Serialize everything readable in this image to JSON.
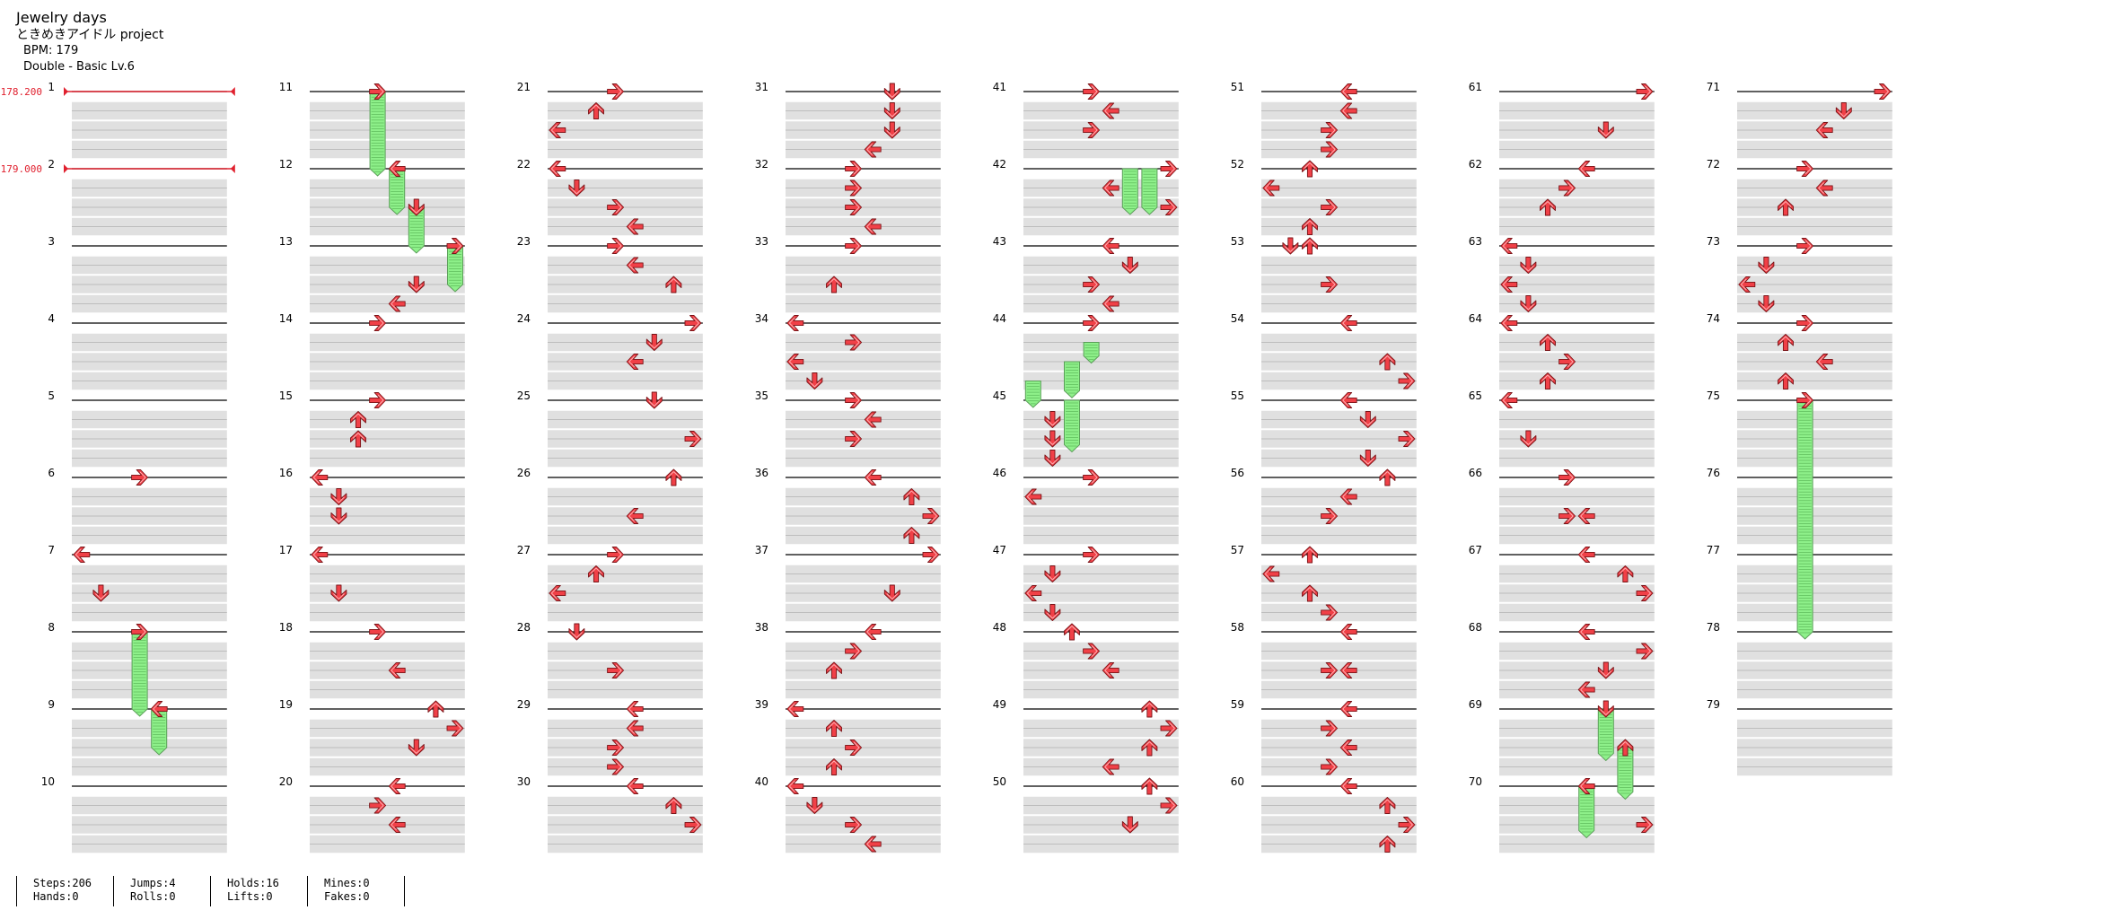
{
  "header": {
    "title": "Jewelry days",
    "artist": "ときめきアイドル project",
    "bpm": "BPM: 179",
    "difficulty": "Double - Basic  Lv.6"
  },
  "bpm_changes": [
    {
      "measure": 1,
      "label": "178.200"
    },
    {
      "measure": 2,
      "label": "179.000"
    }
  ],
  "total_measures": 79,
  "measures_per_column": 10,
  "lanes": 8,
  "rows_per_measure": 4,
  "colors": {
    "arrow": "#f04047",
    "hold": "#8ef08a",
    "hold_border": "#5a9e58",
    "stripe": "#e0e0e0",
    "bpm_line": "#e0202e"
  },
  "notes": [
    {
      "m": 6,
      "r": 0,
      "lane": 3,
      "dir": "right"
    },
    {
      "m": 7,
      "r": 0,
      "lane": 0,
      "dir": "left"
    },
    {
      "m": 7,
      "r": 2,
      "lane": 1,
      "dir": "down"
    },
    {
      "m": 8,
      "r": 0,
      "lane": 3,
      "dir": "right"
    },
    {
      "m": 9,
      "r": 0,
      "lane": 4,
      "dir": "left"
    },
    {
      "m": 11,
      "r": 0,
      "lane": 3,
      "dir": "right"
    },
    {
      "m": 12,
      "r": 0,
      "lane": 4,
      "dir": "left"
    },
    {
      "m": 12,
      "r": 2,
      "lane": 5,
      "dir": "down"
    },
    {
      "m": 13,
      "r": 0,
      "lane": 7,
      "dir": "right"
    },
    {
      "m": 13,
      "r": 2,
      "lane": 5,
      "dir": "down"
    },
    {
      "m": 13,
      "r": 3,
      "lane": 4,
      "dir": "left"
    },
    {
      "m": 14,
      "r": 0,
      "lane": 3,
      "dir": "right"
    },
    {
      "m": 15,
      "r": 0,
      "lane": 3,
      "dir": "right"
    },
    {
      "m": 15,
      "r": 1,
      "lane": 2,
      "dir": "up"
    },
    {
      "m": 15,
      "r": 2,
      "lane": 2,
      "dir": "up"
    },
    {
      "m": 16,
      "r": 0,
      "lane": 0,
      "dir": "left"
    },
    {
      "m": 16,
      "r": 1,
      "lane": 1,
      "dir": "down"
    },
    {
      "m": 16,
      "r": 2,
      "lane": 1,
      "dir": "down"
    },
    {
      "m": 17,
      "r": 0,
      "lane": 0,
      "dir": "left"
    },
    {
      "m": 17,
      "r": 2,
      "lane": 1,
      "dir": "down"
    },
    {
      "m": 18,
      "r": 0,
      "lane": 3,
      "dir": "right"
    },
    {
      "m": 18,
      "r": 2,
      "lane": 4,
      "dir": "left"
    },
    {
      "m": 19,
      "r": 0,
      "lane": 6,
      "dir": "up"
    },
    {
      "m": 19,
      "r": 1,
      "lane": 7,
      "dir": "right"
    },
    {
      "m": 19,
      "r": 2,
      "lane": 5,
      "dir": "down"
    },
    {
      "m": 20,
      "r": 0,
      "lane": 4,
      "dir": "left"
    },
    {
      "m": 20,
      "r": 1,
      "lane": 3,
      "dir": "right"
    },
    {
      "m": 20,
      "r": 2,
      "lane": 4,
      "dir": "left"
    },
    {
      "m": 21,
      "r": 0,
      "lane": 3,
      "dir": "right"
    },
    {
      "m": 21,
      "r": 1,
      "lane": 2,
      "dir": "up"
    },
    {
      "m": 21,
      "r": 2,
      "lane": 0,
      "dir": "left"
    },
    {
      "m": 22,
      "r": 0,
      "lane": 0,
      "dir": "left"
    },
    {
      "m": 22,
      "r": 1,
      "lane": 1,
      "dir": "down"
    },
    {
      "m": 22,
      "r": 2,
      "lane": 3,
      "dir": "right"
    },
    {
      "m": 22,
      "r": 3,
      "lane": 4,
      "dir": "left"
    },
    {
      "m": 23,
      "r": 0,
      "lane": 3,
      "dir": "right"
    },
    {
      "m": 23,
      "r": 1,
      "lane": 4,
      "dir": "left"
    },
    {
      "m": 23,
      "r": 2,
      "lane": 6,
      "dir": "up"
    },
    {
      "m": 24,
      "r": 0,
      "lane": 7,
      "dir": "right"
    },
    {
      "m": 24,
      "r": 1,
      "lane": 5,
      "dir": "down"
    },
    {
      "m": 24,
      "r": 2,
      "lane": 4,
      "dir": "left"
    },
    {
      "m": 25,
      "r": 0,
      "lane": 5,
      "dir": "down"
    },
    {
      "m": 25,
      "r": 2,
      "lane": 7,
      "dir": "right"
    },
    {
      "m": 26,
      "r": 0,
      "lane": 6,
      "dir": "up"
    },
    {
      "m": 26,
      "r": 2,
      "lane": 4,
      "dir": "left"
    },
    {
      "m": 27,
      "r": 0,
      "lane": 3,
      "dir": "right"
    },
    {
      "m": 27,
      "r": 1,
      "lane": 2,
      "dir": "up"
    },
    {
      "m": 27,
      "r": 2,
      "lane": 0,
      "dir": "left"
    },
    {
      "m": 28,
      "r": 0,
      "lane": 1,
      "dir": "down"
    },
    {
      "m": 28,
      "r": 2,
      "lane": 3,
      "dir": "right"
    },
    {
      "m": 29,
      "r": 0,
      "lane": 4,
      "dir": "left"
    },
    {
      "m": 29,
      "r": 1,
      "lane": 4,
      "dir": "left"
    },
    {
      "m": 29,
      "r": 2,
      "lane": 3,
      "dir": "right"
    },
    {
      "m": 29,
      "r": 3,
      "lane": 3,
      "dir": "right"
    },
    {
      "m": 30,
      "r": 0,
      "lane": 4,
      "dir": "left"
    },
    {
      "m": 30,
      "r": 1,
      "lane": 6,
      "dir": "up"
    },
    {
      "m": 30,
      "r": 2,
      "lane": 7,
      "dir": "right"
    },
    {
      "m": 31,
      "r": 0,
      "lane": 5,
      "dir": "down"
    },
    {
      "m": 31,
      "r": 1,
      "lane": 5,
      "dir": "down"
    },
    {
      "m": 31,
      "r": 2,
      "lane": 5,
      "dir": "down"
    },
    {
      "m": 31,
      "r": 3,
      "lane": 4,
      "dir": "left"
    },
    {
      "m": 32,
      "r": 0,
      "lane": 3,
      "dir": "right"
    },
    {
      "m": 32,
      "r": 1,
      "lane": 3,
      "dir": "right"
    },
    {
      "m": 32,
      "r": 2,
      "lane": 3,
      "dir": "right"
    },
    {
      "m": 32,
      "r": 3,
      "lane": 4,
      "dir": "left"
    },
    {
      "m": 33,
      "r": 0,
      "lane": 3,
      "dir": "right"
    },
    {
      "m": 33,
      "r": 2,
      "lane": 2,
      "dir": "up"
    },
    {
      "m": 34,
      "r": 0,
      "lane": 0,
      "dir": "left"
    },
    {
      "m": 34,
      "r": 1,
      "lane": 3,
      "dir": "right"
    },
    {
      "m": 34,
      "r": 2,
      "lane": 0,
      "dir": "left"
    },
    {
      "m": 34,
      "r": 3,
      "lane": 1,
      "dir": "down"
    },
    {
      "m": 35,
      "r": 0,
      "lane": 3,
      "dir": "right"
    },
    {
      "m": 35,
      "r": 1,
      "lane": 4,
      "dir": "left"
    },
    {
      "m": 35,
      "r": 2,
      "lane": 3,
      "dir": "right"
    },
    {
      "m": 36,
      "r": 0,
      "lane": 4,
      "dir": "left"
    },
    {
      "m": 36,
      "r": 1,
      "lane": 6,
      "dir": "up"
    },
    {
      "m": 36,
      "r": 2,
      "lane": 7,
      "dir": "right"
    },
    {
      "m": 36,
      "r": 3,
      "lane": 6,
      "dir": "up"
    },
    {
      "m": 37,
      "r": 0,
      "lane": 7,
      "dir": "right"
    },
    {
      "m": 37,
      "r": 2,
      "lane": 5,
      "dir": "down"
    },
    {
      "m": 38,
      "r": 0,
      "lane": 4,
      "dir": "left"
    },
    {
      "m": 38,
      "r": 1,
      "lane": 3,
      "dir": "right"
    },
    {
      "m": 38,
      "r": 2,
      "lane": 2,
      "dir": "up"
    },
    {
      "m": 39,
      "r": 0,
      "lane": 0,
      "dir": "left"
    },
    {
      "m": 39,
      "r": 1,
      "lane": 2,
      "dir": "up"
    },
    {
      "m": 39,
      "r": 2,
      "lane": 3,
      "dir": "right"
    },
    {
      "m": 39,
      "r": 3,
      "lane": 2,
      "dir": "up"
    },
    {
      "m": 40,
      "r": 0,
      "lane": 0,
      "dir": "left"
    },
    {
      "m": 40,
      "r": 1,
      "lane": 1,
      "dir": "down"
    },
    {
      "m": 40,
      "r": 2,
      "lane": 3,
      "dir": "right"
    },
    {
      "m": 40,
      "r": 3,
      "lane": 4,
      "dir": "left"
    },
    {
      "m": 41,
      "r": 0,
      "lane": 3,
      "dir": "right"
    },
    {
      "m": 41,
      "r": 1,
      "lane": 4,
      "dir": "left"
    },
    {
      "m": 41,
      "r": 2,
      "lane": 3,
      "dir": "right"
    },
    {
      "m": 42,
      "r": 0,
      "lane": 7,
      "dir": "right"
    },
    {
      "m": 42,
      "r": 1,
      "lane": 4,
      "dir": "left"
    },
    {
      "m": 42,
      "r": 2,
      "lane": 7,
      "dir": "right"
    },
    {
      "m": 43,
      "r": 0,
      "lane": 4,
      "dir": "left"
    },
    {
      "m": 43,
      "r": 1,
      "lane": 5,
      "dir": "down"
    },
    {
      "m": 43,
      "r": 2,
      "lane": 3,
      "dir": "right"
    },
    {
      "m": 43,
      "r": 3,
      "lane": 4,
      "dir": "left"
    },
    {
      "m": 44,
      "r": 0,
      "lane": 3,
      "dir": "right"
    },
    {
      "m": 45,
      "r": 1,
      "lane": 1,
      "dir": "down"
    },
    {
      "m": 45,
      "r": 2,
      "lane": 1,
      "dir": "down"
    },
    {
      "m": 45,
      "r": 3,
      "lane": 1,
      "dir": "down"
    },
    {
      "m": 46,
      "r": 0,
      "lane": 3,
      "dir": "right"
    },
    {
      "m": 46,
      "r": 1,
      "lane": 0,
      "dir": "left"
    },
    {
      "m": 47,
      "r": 0,
      "lane": 3,
      "dir": "right"
    },
    {
      "m": 47,
      "r": 1,
      "lane": 1,
      "dir": "down"
    },
    {
      "m": 47,
      "r": 2,
      "lane": 0,
      "dir": "left"
    },
    {
      "m": 47,
      "r": 3,
      "lane": 1,
      "dir": "down"
    },
    {
      "m": 48,
      "r": 0,
      "lane": 2,
      "dir": "up"
    },
    {
      "m": 48,
      "r": 1,
      "lane": 3,
      "dir": "right"
    },
    {
      "m": 48,
      "r": 2,
      "lane": 4,
      "dir": "left"
    },
    {
      "m": 49,
      "r": 0,
      "lane": 6,
      "dir": "up"
    },
    {
      "m": 49,
      "r": 1,
      "lane": 7,
      "dir": "right"
    },
    {
      "m": 49,
      "r": 2,
      "lane": 6,
      "dir": "up"
    },
    {
      "m": 49,
      "r": 3,
      "lane": 4,
      "dir": "left"
    },
    {
      "m": 50,
      "r": 0,
      "lane": 6,
      "dir": "up"
    },
    {
      "m": 50,
      "r": 1,
      "lane": 7,
      "dir": "right"
    },
    {
      "m": 50,
      "r": 2,
      "lane": 5,
      "dir": "down"
    },
    {
      "m": 51,
      "r": 0,
      "lane": 4,
      "dir": "left"
    },
    {
      "m": 51,
      "r": 1,
      "lane": 4,
      "dir": "left"
    },
    {
      "m": 51,
      "r": 2,
      "lane": 3,
      "dir": "right"
    },
    {
      "m": 51,
      "r": 3,
      "lane": 3,
      "dir": "right"
    },
    {
      "m": 52,
      "r": 0,
      "lane": 2,
      "dir": "up"
    },
    {
      "m": 52,
      "r": 1,
      "lane": 0,
      "dir": "left"
    },
    {
      "m": 52,
      "r": 2,
      "lane": 3,
      "dir": "right"
    },
    {
      "m": 52,
      "r": 3,
      "lane": 2,
      "dir": "up"
    },
    {
      "m": 53,
      "r": 0,
      "lane": 1,
      "dir": "down"
    },
    {
      "m": 53,
      "r": 0,
      "lane": 2,
      "dir": "up"
    },
    {
      "m": 53,
      "r": 2,
      "lane": 3,
      "dir": "right"
    },
    {
      "m": 54,
      "r": 0,
      "lane": 4,
      "dir": "left"
    },
    {
      "m": 54,
      "r": 2,
      "lane": 6,
      "dir": "up"
    },
    {
      "m": 54,
      "r": 3,
      "lane": 7,
      "dir": "right"
    },
    {
      "m": 55,
      "r": 0,
      "lane": 4,
      "dir": "left"
    },
    {
      "m": 55,
      "r": 1,
      "lane": 5,
      "dir": "down"
    },
    {
      "m": 55,
      "r": 2,
      "lane": 7,
      "dir": "right"
    },
    {
      "m": 55,
      "r": 3,
      "lane": 5,
      "dir": "down"
    },
    {
      "m": 56,
      "r": 0,
      "lane": 6,
      "dir": "up"
    },
    {
      "m": 56,
      "r": 1,
      "lane": 4,
      "dir": "left"
    },
    {
      "m": 56,
      "r": 2,
      "lane": 3,
      "dir": "right"
    },
    {
      "m": 57,
      "r": 0,
      "lane": 2,
      "dir": "up"
    },
    {
      "m": 57,
      "r": 1,
      "lane": 0,
      "dir": "left"
    },
    {
      "m": 57,
      "r": 2,
      "lane": 2,
      "dir": "up"
    },
    {
      "m": 57,
      "r": 3,
      "lane": 3,
      "dir": "right"
    },
    {
      "m": 58,
      "r": 0,
      "lane": 4,
      "dir": "left"
    },
    {
      "m": 58,
      "r": 2,
      "lane": 3,
      "dir": "right"
    },
    {
      "m": 58,
      "r": 2,
      "lane": 4,
      "dir": "left"
    },
    {
      "m": 59,
      "r": 0,
      "lane": 4,
      "dir": "left"
    },
    {
      "m": 59,
      "r": 1,
      "lane": 3,
      "dir": "right"
    },
    {
      "m": 59,
      "r": 2,
      "lane": 4,
      "dir": "left"
    },
    {
      "m": 59,
      "r": 3,
      "lane": 3,
      "dir": "right"
    },
    {
      "m": 60,
      "r": 0,
      "lane": 4,
      "dir": "left"
    },
    {
      "m": 60,
      "r": 1,
      "lane": 6,
      "dir": "up"
    },
    {
      "m": 60,
      "r": 2,
      "lane": 7,
      "dir": "right"
    },
    {
      "m": 60,
      "r": 3,
      "lane": 6,
      "dir": "up"
    },
    {
      "m": 61,
      "r": 0,
      "lane": 7,
      "dir": "right"
    },
    {
      "m": 61,
      "r": 2,
      "lane": 5,
      "dir": "down"
    },
    {
      "m": 62,
      "r": 0,
      "lane": 4,
      "dir": "left"
    },
    {
      "m": 62,
      "r": 1,
      "lane": 3,
      "dir": "right"
    },
    {
      "m": 62,
      "r": 2,
      "lane": 2,
      "dir": "up"
    },
    {
      "m": 63,
      "r": 0,
      "lane": 0,
      "dir": "left"
    },
    {
      "m": 63,
      "r": 1,
      "lane": 1,
      "dir": "down"
    },
    {
      "m": 63,
      "r": 2,
      "lane": 0,
      "dir": "left"
    },
    {
      "m": 63,
      "r": 3,
      "lane": 1,
      "dir": "down"
    },
    {
      "m": 64,
      "r": 0,
      "lane": 0,
      "dir": "left"
    },
    {
      "m": 64,
      "r": 1,
      "lane": 2,
      "dir": "up"
    },
    {
      "m": 64,
      "r": 2,
      "lane": 3,
      "dir": "right"
    },
    {
      "m": 64,
      "r": 3,
      "lane": 2,
      "dir": "up"
    },
    {
      "m": 65,
      "r": 0,
      "lane": 0,
      "dir": "left"
    },
    {
      "m": 65,
      "r": 2,
      "lane": 1,
      "dir": "down"
    },
    {
      "m": 66,
      "r": 0,
      "lane": 3,
      "dir": "right"
    },
    {
      "m": 66,
      "r": 2,
      "lane": 3,
      "dir": "right"
    },
    {
      "m": 66,
      "r": 2,
      "lane": 4,
      "dir": "left"
    },
    {
      "m": 67,
      "r": 0,
      "lane": 4,
      "dir": "left"
    },
    {
      "m": 67,
      "r": 1,
      "lane": 6,
      "dir": "up"
    },
    {
      "m": 67,
      "r": 2,
      "lane": 7,
      "dir": "right"
    },
    {
      "m": 68,
      "r": 0,
      "lane": 4,
      "dir": "left"
    },
    {
      "m": 68,
      "r": 1,
      "lane": 7,
      "dir": "right"
    },
    {
      "m": 68,
      "r": 2,
      "lane": 5,
      "dir": "down"
    },
    {
      "m": 68,
      "r": 3,
      "lane": 4,
      "dir": "left"
    },
    {
      "m": 69,
      "r": 0,
      "lane": 5,
      "dir": "down"
    },
    {
      "m": 69,
      "r": 2,
      "lane": 6,
      "dir": "up"
    },
    {
      "m": 70,
      "r": 0,
      "lane": 4,
      "dir": "left"
    },
    {
      "m": 70,
      "r": 2,
      "lane": 7,
      "dir": "right"
    },
    {
      "m": 71,
      "r": 0,
      "lane": 7,
      "dir": "right"
    },
    {
      "m": 71,
      "r": 1,
      "lane": 5,
      "dir": "down"
    },
    {
      "m": 71,
      "r": 2,
      "lane": 4,
      "dir": "left"
    },
    {
      "m": 72,
      "r": 0,
      "lane": 3,
      "dir": "right"
    },
    {
      "m": 72,
      "r": 1,
      "lane": 4,
      "dir": "left"
    },
    {
      "m": 72,
      "r": 2,
      "lane": 2,
      "dir": "up"
    },
    {
      "m": 73,
      "r": 0,
      "lane": 3,
      "dir": "right"
    },
    {
      "m": 73,
      "r": 1,
      "lane": 1,
      "dir": "down"
    },
    {
      "m": 73,
      "r": 2,
      "lane": 0,
      "dir": "left"
    },
    {
      "m": 73,
      "r": 3,
      "lane": 1,
      "dir": "down"
    },
    {
      "m": 74,
      "r": 0,
      "lane": 3,
      "dir": "right"
    },
    {
      "m": 74,
      "r": 1,
      "lane": 2,
      "dir": "up"
    },
    {
      "m": 74,
      "r": 2,
      "lane": 4,
      "dir": "left"
    },
    {
      "m": 74,
      "r": 3,
      "lane": 2,
      "dir": "up"
    },
    {
      "m": 75,
      "r": 0,
      "lane": 3,
      "dir": "right"
    }
  ],
  "holds": [
    {
      "m": 8,
      "r": 0,
      "lane": 3,
      "len": 4
    },
    {
      "m": 9,
      "r": 0,
      "lane": 4,
      "len": 2
    },
    {
      "m": 11,
      "r": 0,
      "lane": 3,
      "len": 4
    },
    {
      "m": 12,
      "r": 0,
      "lane": 4,
      "len": 2
    },
    {
      "m": 12,
      "r": 2,
      "lane": 5,
      "len": 2
    },
    {
      "m": 13,
      "r": 0,
      "lane": 7,
      "len": 2
    },
    {
      "m": 42,
      "r": 0,
      "lane": 5,
      "len": 2
    },
    {
      "m": 42,
      "r": 0,
      "lane": 6,
      "len": 2
    },
    {
      "m": 44,
      "r": 1,
      "lane": 3,
      "len": 0.7
    },
    {
      "m": 44,
      "r": 2,
      "lane": 2,
      "len": 1.5
    },
    {
      "m": 44,
      "r": 3,
      "lane": 0,
      "len": 1
    },
    {
      "m": 45,
      "r": 0,
      "lane": 2,
      "len": 2.3
    },
    {
      "m": 69,
      "r": 0,
      "lane": 5,
      "len": 2.3
    },
    {
      "m": 69,
      "r": 2,
      "lane": 6,
      "len": 2.3
    },
    {
      "m": 70,
      "r": 0,
      "lane": 4,
      "len": 2.3
    },
    {
      "m": 75,
      "r": 0,
      "lane": 3,
      "len": 12
    }
  ],
  "stats": [
    [
      "Steps:206",
      "Hands:0"
    ],
    [
      "Jumps:4",
      "Rolls:0"
    ],
    [
      "Holds:16",
      "Lifts:0"
    ],
    [
      "Mines:0",
      "Fakes:0"
    ]
  ]
}
